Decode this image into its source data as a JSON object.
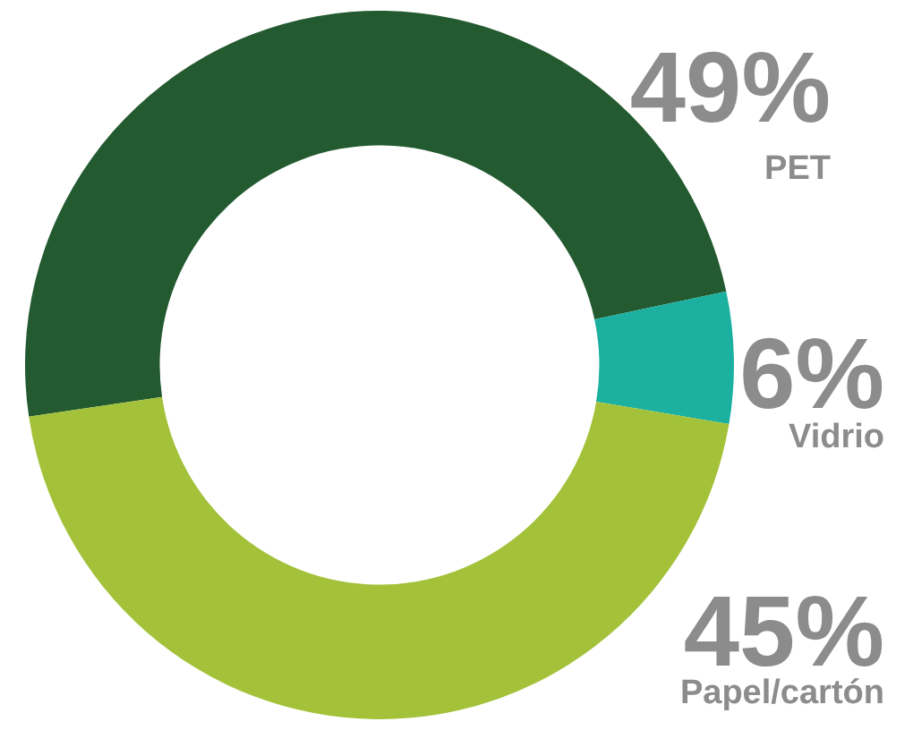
{
  "chart_data": {
    "type": "donut",
    "categories": [
      "PET",
      "Vidrio",
      "Papel/cartón"
    ],
    "values": [
      49,
      6,
      45
    ],
    "value_labels": [
      "49%",
      "6%",
      "45%"
    ],
    "colors": [
      "#235a30",
      "#1bb0a0",
      "#a3c23a"
    ],
    "legend": false
  }
}
